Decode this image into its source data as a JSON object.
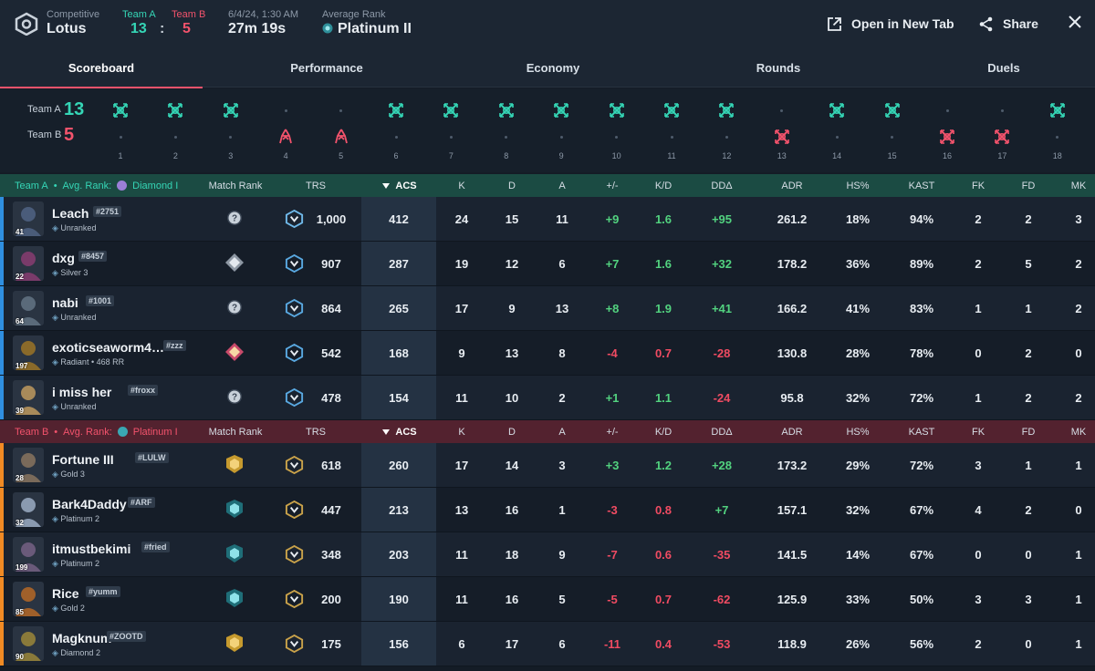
{
  "header": {
    "mode_label": "Competitive",
    "map": "Lotus",
    "team_a_label": "Team A",
    "team_b_label": "Team B",
    "team_a_score": "13",
    "score_sep": ":",
    "team_b_score": "5",
    "date": "6/4/24, 1:30 AM",
    "duration": "27m 19s",
    "avg_rank_label": "Average Rank",
    "avg_rank": "Platinum II",
    "open_tab_label": "Open in New Tab",
    "share_label": "Share"
  },
  "tabs": [
    "Scoreboard",
    "Performance",
    "Economy",
    "Rounds",
    "Duels"
  ],
  "timeline": {
    "team_a_label": "Team A",
    "team_a_score": "13",
    "team_b_label": "Team B",
    "team_b_score": "5",
    "rounds": [
      {
        "n": "1",
        "winner": "A",
        "type": "elim"
      },
      {
        "n": "2",
        "winner": "A",
        "type": "elim"
      },
      {
        "n": "3",
        "winner": "A",
        "type": "elim"
      },
      {
        "n": "4",
        "winner": "B",
        "type": "defuse"
      },
      {
        "n": "5",
        "winner": "B",
        "type": "defuse"
      },
      {
        "n": "6",
        "winner": "A",
        "type": "elim"
      },
      {
        "n": "7",
        "winner": "A",
        "type": "elim"
      },
      {
        "n": "8",
        "winner": "A",
        "type": "elim"
      },
      {
        "n": "9",
        "winner": "A",
        "type": "elim"
      },
      {
        "n": "10",
        "winner": "A",
        "type": "elim"
      },
      {
        "n": "11",
        "winner": "A",
        "type": "elim"
      },
      {
        "n": "12",
        "winner": "A",
        "type": "elim"
      },
      {
        "n": "13",
        "winner": "B",
        "type": "elim"
      },
      {
        "n": "14",
        "winner": "A",
        "type": "elim"
      },
      {
        "n": "15",
        "winner": "A",
        "type": "elim"
      },
      {
        "n": "16",
        "winner": "B",
        "type": "elim"
      },
      {
        "n": "17",
        "winner": "B",
        "type": "elim"
      },
      {
        "n": "18",
        "winner": "A",
        "type": "elim"
      }
    ]
  },
  "columns": {
    "match_rank": "Match Rank",
    "trs": "TRS",
    "acs": "ACS",
    "k": "K",
    "d": "D",
    "a": "A",
    "pm": "+/-",
    "kd": "K/D",
    "dd": "DDΔ",
    "adr": "ADR",
    "hs": "HS%",
    "kast": "KAST",
    "fk": "FK",
    "fd": "FD",
    "mk": "MK"
  },
  "teams": [
    {
      "key": "a",
      "name": "Team A",
      "bullet": "•",
      "avg_rank_label": "Avg. Rank:",
      "avg_rank": "Diamond I",
      "color": "#35d6b6",
      "players": [
        {
          "name": "Leach",
          "tag": "#2751",
          "rank": "Unranked",
          "level": "41",
          "mrank": "unknown",
          "trs": "1,000",
          "acs": "412",
          "k": "24",
          "d": "15",
          "a": "11",
          "pm": "+9",
          "kd": "1.6",
          "dd": "+95",
          "adr": "261.2",
          "hs": "18%",
          "kast": "94%",
          "fk": "2",
          "fd": "2",
          "mk": "3"
        },
        {
          "name": "dxg",
          "tag": "#8457",
          "rank": "Silver 3",
          "level": "22",
          "mrank": "silver",
          "trs": "907",
          "acs": "287",
          "k": "19",
          "d": "12",
          "a": "6",
          "pm": "+7",
          "kd": "1.6",
          "dd": "+32",
          "adr": "178.2",
          "hs": "36%",
          "kast": "89%",
          "fk": "2",
          "fd": "5",
          "mk": "2"
        },
        {
          "name": "nabi",
          "tag": "#1001",
          "rank": "Unranked",
          "level": "64",
          "mrank": "unknown",
          "trs": "864",
          "acs": "265",
          "k": "17",
          "d": "9",
          "a": "13",
          "pm": "+8",
          "kd": "1.9",
          "dd": "+41",
          "adr": "166.2",
          "hs": "41%",
          "kast": "83%",
          "fk": "1",
          "fd": "1",
          "mk": "2"
        },
        {
          "name": "exoticseaworm4…",
          "tag": "#zzz",
          "rank": "Radiant • 468 RR",
          "level": "197",
          "mrank": "radiant",
          "trs": "542",
          "acs": "168",
          "k": "9",
          "d": "13",
          "a": "8",
          "pm": "-4",
          "kd": "0.7",
          "dd": "-28",
          "adr": "130.8",
          "hs": "28%",
          "kast": "78%",
          "fk": "0",
          "fd": "2",
          "mk": "0"
        },
        {
          "name": "i miss her",
          "tag": "#froxx",
          "rank": "Unranked",
          "level": "39",
          "mrank": "unknown",
          "trs": "478",
          "acs": "154",
          "k": "11",
          "d": "10",
          "a": "2",
          "pm": "+1",
          "kd": "1.1",
          "dd": "-24",
          "adr": "95.8",
          "hs": "32%",
          "kast": "72%",
          "fk": "1",
          "fd": "2",
          "mk": "2"
        }
      ]
    },
    {
      "key": "b",
      "name": "Team B",
      "bullet": "•",
      "avg_rank_label": "Avg. Rank:",
      "avg_rank": "Platinum I",
      "color": "#f3536c",
      "players": [
        {
          "name": "Fortune III",
          "tag": "#LULW",
          "rank": "Gold 3",
          "level": "28",
          "mrank": "gold",
          "trs": "618",
          "acs": "260",
          "k": "17",
          "d": "14",
          "a": "3",
          "pm": "+3",
          "kd": "1.2",
          "dd": "+28",
          "adr": "173.2",
          "hs": "29%",
          "kast": "72%",
          "fk": "3",
          "fd": "1",
          "mk": "1"
        },
        {
          "name": "Bark4Daddy",
          "tag": "#ARF",
          "rank": "Platinum 2",
          "level": "32",
          "mrank": "platinum",
          "trs": "447",
          "acs": "213",
          "k": "13",
          "d": "16",
          "a": "1",
          "pm": "-3",
          "kd": "0.8",
          "dd": "+7",
          "adr": "157.1",
          "hs": "32%",
          "kast": "67%",
          "fk": "4",
          "fd": "2",
          "mk": "0"
        },
        {
          "name": "itmustbekimi",
          "tag": "#fried",
          "rank": "Platinum 2",
          "level": "199",
          "mrank": "platinum",
          "trs": "348",
          "acs": "203",
          "k": "11",
          "d": "18",
          "a": "9",
          "pm": "-7",
          "kd": "0.6",
          "dd": "-35",
          "adr": "141.5",
          "hs": "14%",
          "kast": "67%",
          "fk": "0",
          "fd": "0",
          "mk": "1"
        },
        {
          "name": "Rice",
          "tag": "#yumm",
          "rank": "Gold 2",
          "level": "85",
          "mrank": "platinum",
          "trs": "200",
          "acs": "190",
          "k": "11",
          "d": "16",
          "a": "5",
          "pm": "-5",
          "kd": "0.7",
          "dd": "-62",
          "adr": "125.9",
          "hs": "33%",
          "kast": "50%",
          "fk": "3",
          "fd": "3",
          "mk": "1"
        },
        {
          "name": "Magknum",
          "tag": "#ZOOTD",
          "rank": "Diamond 2",
          "level": "90",
          "mrank": "gold",
          "trs": "175",
          "acs": "156",
          "k": "6",
          "d": "17",
          "a": "6",
          "pm": "-11",
          "kd": "0.4",
          "dd": "-53",
          "adr": "118.9",
          "hs": "26%",
          "kast": "56%",
          "fk": "2",
          "fd": "0",
          "mk": "1"
        }
      ]
    }
  ]
}
